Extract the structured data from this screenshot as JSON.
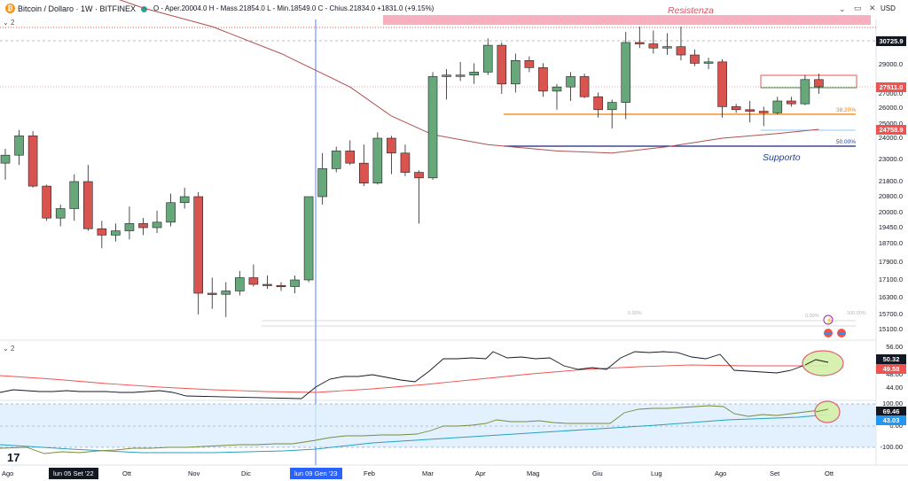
{
  "header": {
    "symbol": "Bitcoin / Dollaro · 1W · BITFINEX",
    "ohlc": "O - Aper.20004.0 H - Mass.21854.0 L - Min.18549.0 C - Chius.21834.0 +1831.0 (+9.15%)",
    "currency": "USD",
    "pane1_indicator": "2",
    "pane2_indicator": "2"
  },
  "annotations": {
    "resistance": "Resistenza",
    "support": "Supporto",
    "fib_382": "38.20%",
    "fib_500": "50.00%",
    "fib_0_left": "0.00%",
    "fib_0_right": "0.00%",
    "fib_100": "100.00%"
  },
  "price_axis": {
    "labels": [
      "29000.0",
      "27000.0",
      "26000.0",
      "25000.0",
      "24000.0",
      "23000.0",
      "21800.0",
      "20800.0",
      "20000.0",
      "19450.0",
      "18700.0",
      "17900.0",
      "17100.0",
      "16300.0",
      "15700.0",
      "15100.0"
    ],
    "tags": [
      {
        "value": "30725.9",
        "bg": "#131722"
      },
      {
        "value": "27511.0",
        "bg": "#ef5350"
      },
      {
        "value": "24758.9",
        "bg": "#ef5350"
      }
    ]
  },
  "osc1_axis": {
    "labels": [
      "56.00",
      "48.00",
      "44.00"
    ],
    "tags": [
      {
        "value": "50.32",
        "bg": "#131722"
      },
      {
        "value": "49.58",
        "bg": "#ef5350"
      }
    ]
  },
  "osc2_axis": {
    "labels": [
      "100.00",
      "0.00",
      "-100.00"
    ],
    "tags": [
      {
        "value": "69.46",
        "bg": "#131722"
      },
      {
        "value": "43.03",
        "bg": "#2196f3"
      }
    ]
  },
  "time_axis": {
    "labels": [
      "Ago",
      "Ott",
      "Nov",
      "Dic",
      "Feb",
      "Mar",
      "Apr",
      "Mag",
      "Giu",
      "Lug",
      "Ago",
      "Set",
      "Ott"
    ],
    "tag_left": "lun 05 Set '22",
    "tag_right": "lun 09 Gen '23"
  },
  "colors": {
    "up": "#26a69a",
    "up_fill": "#66a87a",
    "down": "#d9534f",
    "ma": "#b05050",
    "resistance_band": "#f7a6b8",
    "support_line": "#1a237e",
    "fib_orange": "#f57c00",
    "cross_blue": "#2962ff"
  },
  "chart_data": {
    "type": "candlestick",
    "title": "Bitcoin / Dollaro · 1W · BITFINEX",
    "candles": [
      {
        "o": 22800,
        "h": 23500,
        "l": 21900,
        "c": 23200
      },
      {
        "o": 23200,
        "h": 24700,
        "l": 22700,
        "c": 24200
      },
      {
        "o": 24200,
        "h": 24600,
        "l": 21400,
        "c": 21500
      },
      {
        "o": 21500,
        "h": 21600,
        "l": 19700,
        "c": 19800
      },
      {
        "o": 19800,
        "h": 20400,
        "l": 19500,
        "c": 20200
      },
      {
        "o": 20200,
        "h": 22200,
        "l": 19700,
        "c": 21800
      },
      {
        "o": 21800,
        "h": 22700,
        "l": 19300,
        "c": 19400
      },
      {
        "o": 19400,
        "h": 19700,
        "l": 18500,
        "c": 19100
      },
      {
        "o": 19100,
        "h": 19600,
        "l": 18800,
        "c": 19300
      },
      {
        "o": 19300,
        "h": 20300,
        "l": 18900,
        "c": 19600
      },
      {
        "o": 19600,
        "h": 19800,
        "l": 19100,
        "c": 19450
      },
      {
        "o": 19450,
        "h": 20100,
        "l": 19200,
        "c": 19650
      },
      {
        "o": 19650,
        "h": 21000,
        "l": 19500,
        "c": 20500
      },
      {
        "o": 20500,
        "h": 21400,
        "l": 20200,
        "c": 20800
      },
      {
        "o": 20800,
        "h": 21100,
        "l": 15700,
        "c": 16500
      },
      {
        "o": 16500,
        "h": 17200,
        "l": 15900,
        "c": 16450
      },
      {
        "o": 16450,
        "h": 17000,
        "l": 15600,
        "c": 16600
      },
      {
        "o": 16600,
        "h": 17500,
        "l": 16400,
        "c": 17200
      },
      {
        "o": 17200,
        "h": 17800,
        "l": 16800,
        "c": 16900
      },
      {
        "o": 16900,
        "h": 17300,
        "l": 16700,
        "c": 16850
      },
      {
        "o": 16850,
        "h": 17000,
        "l": 16600,
        "c": 16800
      },
      {
        "o": 16800,
        "h": 17300,
        "l": 16500,
        "c": 17100
      },
      {
        "o": 17100,
        "h": 20800,
        "l": 17000,
        "c": 20800
      },
      {
        "o": 20800,
        "h": 23300,
        "l": 20400,
        "c": 22500
      },
      {
        "o": 22500,
        "h": 23600,
        "l": 22300,
        "c": 23400
      },
      {
        "o": 23400,
        "h": 23900,
        "l": 22700,
        "c": 22800
      },
      {
        "o": 22800,
        "h": 23700,
        "l": 21500,
        "c": 21700
      },
      {
        "o": 21700,
        "h": 24500,
        "l": 21600,
        "c": 24000
      },
      {
        "o": 24000,
        "h": 24200,
        "l": 22200,
        "c": 23300
      },
      {
        "o": 23300,
        "h": 23700,
        "l": 22100,
        "c": 22300
      },
      {
        "o": 22300,
        "h": 22400,
        "l": 19600,
        "c": 22000
      },
      {
        "o": 22000,
        "h": 28500,
        "l": 21900,
        "c": 28200
      },
      {
        "o": 28200,
        "h": 28700,
        "l": 26600,
        "c": 28300
      },
      {
        "o": 28300,
        "h": 29200,
        "l": 27900,
        "c": 28300
      },
      {
        "o": 28300,
        "h": 29100,
        "l": 27700,
        "c": 28500
      },
      {
        "o": 28500,
        "h": 30900,
        "l": 28300,
        "c": 30400
      },
      {
        "o": 30400,
        "h": 30600,
        "l": 27000,
        "c": 27700
      },
      {
        "o": 27700,
        "h": 29800,
        "l": 27100,
        "c": 29300
      },
      {
        "o": 29300,
        "h": 29600,
        "l": 28500,
        "c": 28800
      },
      {
        "o": 28800,
        "h": 29100,
        "l": 26800,
        "c": 27200
      },
      {
        "o": 27200,
        "h": 27700,
        "l": 25900,
        "c": 27500
      },
      {
        "o": 27500,
        "h": 28500,
        "l": 26500,
        "c": 28200
      },
      {
        "o": 28200,
        "h": 28400,
        "l": 26700,
        "c": 26800
      },
      {
        "o": 26800,
        "h": 27100,
        "l": 25400,
        "c": 25900
      },
      {
        "o": 25900,
        "h": 26600,
        "l": 24800,
        "c": 26400
      },
      {
        "o": 26400,
        "h": 31400,
        "l": 25300,
        "c": 30600
      },
      {
        "o": 30600,
        "h": 31800,
        "l": 30200,
        "c": 30500
      },
      {
        "o": 30500,
        "h": 31500,
        "l": 29800,
        "c": 30200
      },
      {
        "o": 30200,
        "h": 31300,
        "l": 29700,
        "c": 30300
      },
      {
        "o": 30300,
        "h": 31800,
        "l": 29300,
        "c": 29700
      },
      {
        "o": 29700,
        "h": 30100,
        "l": 28900,
        "c": 29100
      },
      {
        "o": 29100,
        "h": 29500,
        "l": 28700,
        "c": 29200
      },
      {
        "o": 29200,
        "h": 29400,
        "l": 25400,
        "c": 26100
      },
      {
        "o": 26100,
        "h": 26300,
        "l": 25700,
        "c": 25900
      },
      {
        "o": 25900,
        "h": 26500,
        "l": 25100,
        "c": 25800
      },
      {
        "o": 25800,
        "h": 26100,
        "l": 24900,
        "c": 25700
      },
      {
        "o": 25700,
        "h": 26800,
        "l": 25600,
        "c": 26500
      },
      {
        "o": 26500,
        "h": 26800,
        "l": 26100,
        "c": 26300
      },
      {
        "o": 26300,
        "h": 28300,
        "l": 26200,
        "c": 28000
      },
      {
        "o": 28000,
        "h": 28400,
        "l": 27000,
        "c": 27511
      }
    ],
    "ma": [
      {
        "i": 0,
        "v": 37500
      },
      {
        "i": 5,
        "v": 35000
      },
      {
        "i": 10,
        "v": 33200
      },
      {
        "i": 15,
        "v": 31800
      },
      {
        "i": 20,
        "v": 29800
      },
      {
        "i": 25,
        "v": 27500
      },
      {
        "i": 28,
        "v": 25500
      },
      {
        "i": 31,
        "v": 24300
      },
      {
        "i": 35,
        "v": 23700
      },
      {
        "i": 40,
        "v": 23400
      },
      {
        "i": 44,
        "v": 23300
      },
      {
        "i": 48,
        "v": 23600
      },
      {
        "i": 52,
        "v": 24000
      },
      {
        "i": 56,
        "v": 24400
      },
      {
        "i": 59,
        "v": 24758.9
      }
    ],
    "resistance_range": [
      31300,
      31900
    ],
    "support_level": 23900,
    "fib_382_level": 26000,
    "fib_500_level": 24700
  }
}
